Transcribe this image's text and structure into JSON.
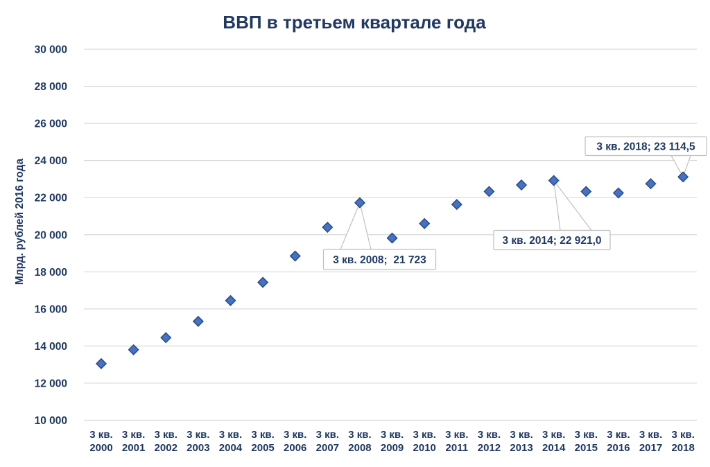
{
  "page": {
    "background": "#FFFFFF"
  },
  "colors": {
    "text_navy": "#1F3864",
    "marker_fill": "#4472C4",
    "marker_border": "#2A4A8B",
    "gridline": "#D9D9D9",
    "callout_border": "#BFBFBF",
    "callout_fill": "#FFFFFF"
  },
  "chart_data": {
    "type": "scatter",
    "title": "ВВП в третьем квартале года",
    "ylabel": "Млрд. рублей 2016 года",
    "xlabel": "",
    "x_tick_prefix": "3 кв.",
    "categories": [
      "2000",
      "2001",
      "2002",
      "2003",
      "2004",
      "2005",
      "2006",
      "2007",
      "2008",
      "2009",
      "2010",
      "2011",
      "2012",
      "2013",
      "2014",
      "2015",
      "2016",
      "2017",
      "2018"
    ],
    "values": [
      13050,
      13800,
      14450,
      15330,
      16450,
      17430,
      18850,
      20400,
      21723,
      19820,
      20600,
      21630,
      22330,
      22680,
      22921.0,
      22330,
      22250,
      22750,
      23114.5
    ],
    "ylim": [
      10000,
      30000
    ],
    "ytick_step": 2000,
    "ytick_labels": [
      "10 000",
      "12 000",
      "14 000",
      "16 000",
      "18 000",
      "20 000",
      "22 000",
      "24 000",
      "26 000",
      "28 000",
      "30 000"
    ],
    "grid": true,
    "legend": "none",
    "marker": "diamond",
    "annotations": [
      {
        "category": "2008",
        "text": "3 кв. 2008;  21 723"
      },
      {
        "category": "2014",
        "text": "3 кв. 2014; 22 921,0"
      },
      {
        "category": "2018",
        "text": "3 кв. 2018; 23 114,5"
      }
    ]
  }
}
